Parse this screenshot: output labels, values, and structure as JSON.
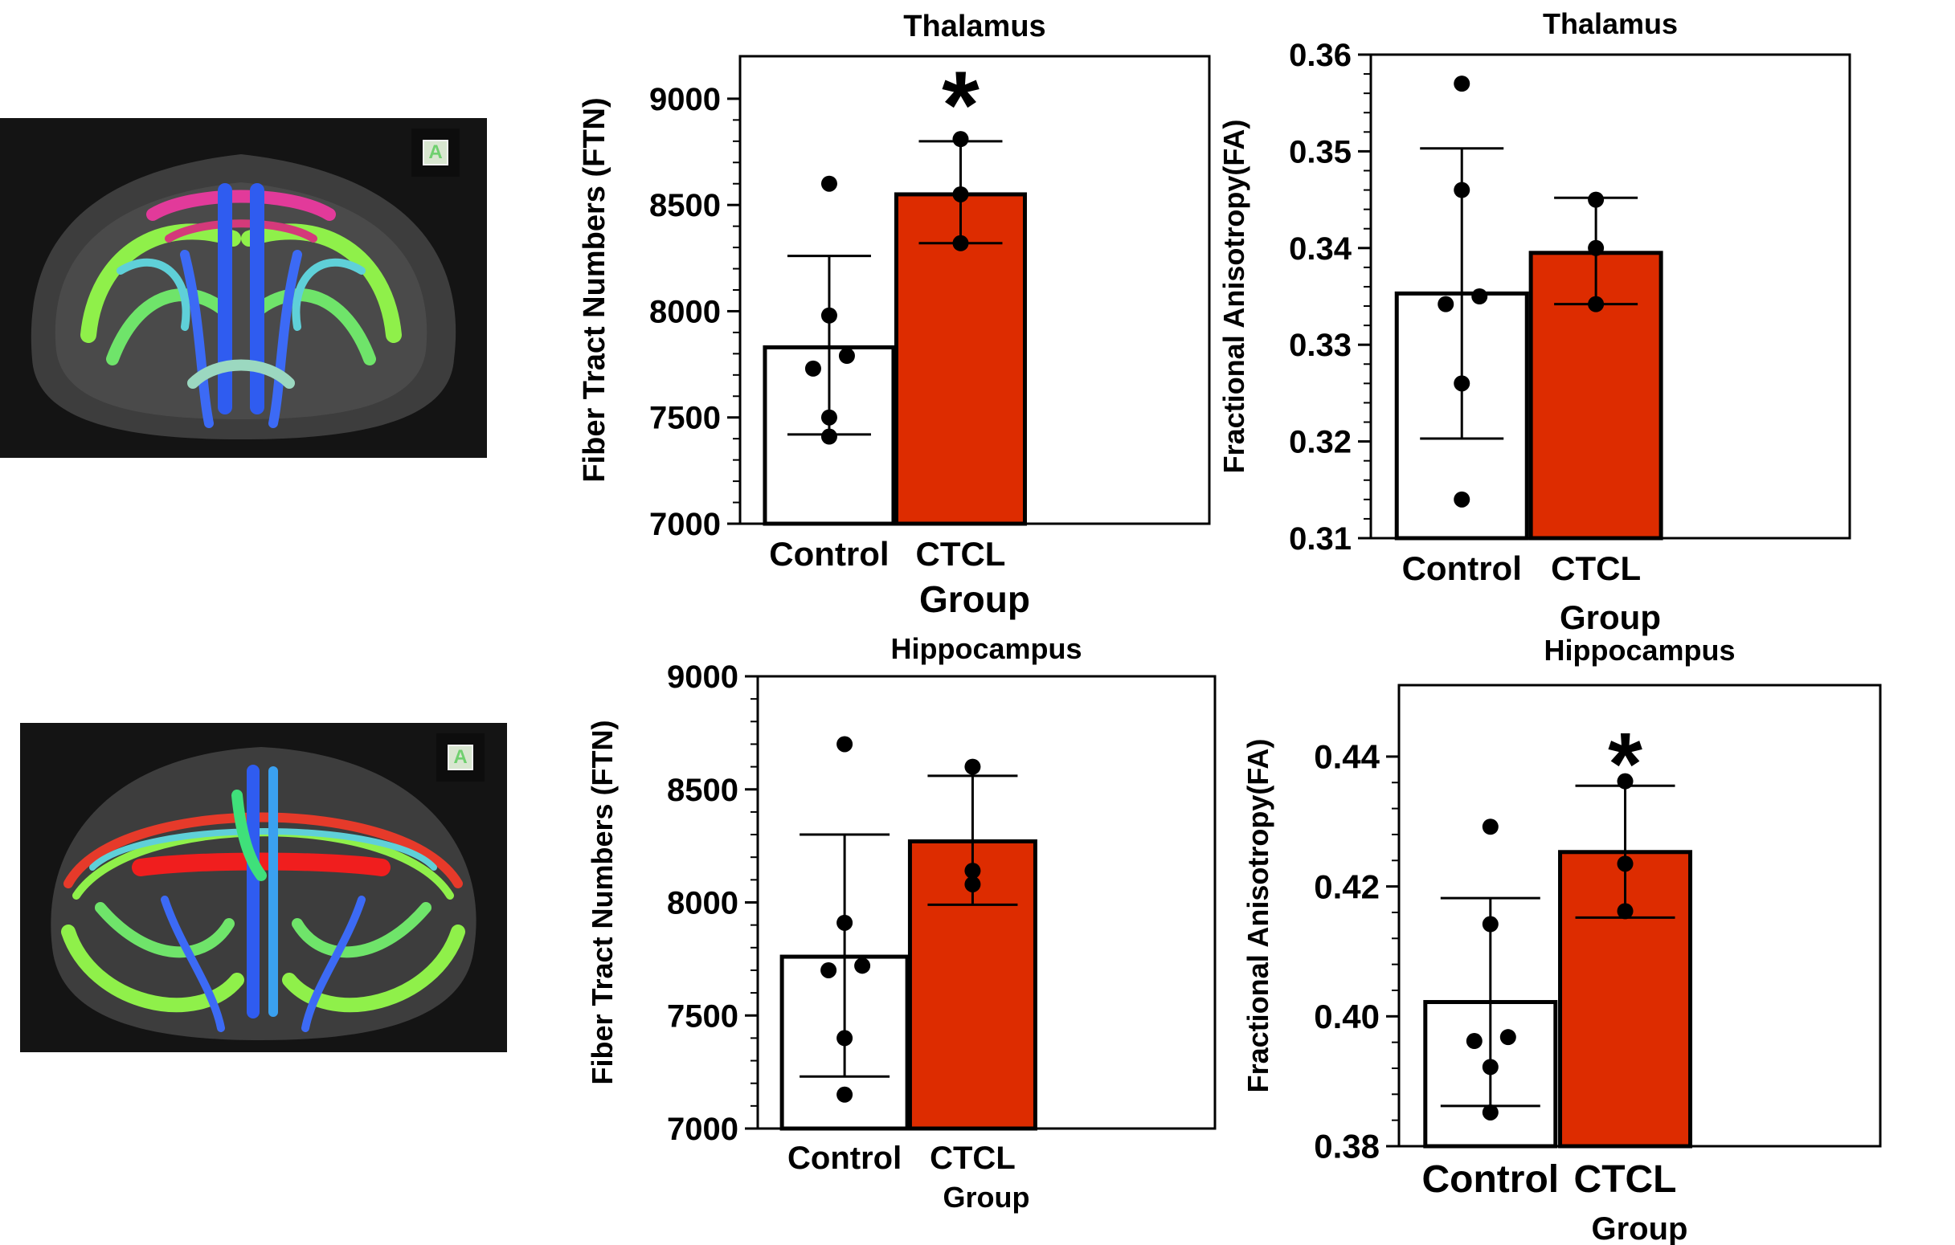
{
  "figure": {
    "orientation_label": "A",
    "panels": [
      {
        "id": "thalamus",
        "image_icon": "brain-tractography-thalamus"
      },
      {
        "id": "hippocampus",
        "image_icon": "brain-tractography-hippocampus"
      }
    ]
  },
  "colors": {
    "control_fill": "#ffffff",
    "ctcl_fill": "#dd2c00",
    "outline": "#000000"
  },
  "chart_data": [
    {
      "type": "bar",
      "title": "Thalamus",
      "xlabel": "Group",
      "ylabel": "Fiber Tract Numbers (FTN)",
      "categories": [
        "Control",
        "CTCL"
      ],
      "values": [
        7830,
        8550
      ],
      "errors": [
        [
          7420,
          8260
        ],
        [
          8320,
          8800
        ]
      ],
      "points": [
        [
          8600,
          7980,
          7730,
          7790,
          7500,
          7410
        ],
        [
          8810,
          8550,
          8320
        ]
      ],
      "ylim": [
        7000,
        9200
      ],
      "yticks": [
        7000,
        7500,
        8000,
        8500,
        9000
      ],
      "ytick_labels": [
        "7000",
        "7500",
        "8000",
        "8500",
        "9000"
      ],
      "significance": [
        "",
        "*"
      ]
    },
    {
      "type": "bar",
      "title": "Thalamus",
      "xlabel": "Group",
      "ylabel": "Fractional Anisotropy(FA)",
      "categories": [
        "Control",
        "CTCL"
      ],
      "values": [
        0.3353,
        0.3395
      ],
      "errors": [
        [
          0.3203,
          0.3503
        ],
        [
          0.3342,
          0.3452
        ]
      ],
      "points": [
        [
          0.357,
          0.346,
          0.3342,
          0.335,
          0.326,
          0.314
        ],
        [
          0.345,
          0.34,
          0.3342
        ]
      ],
      "ylim": [
        0.31,
        0.36
      ],
      "yticks": [
        0.31,
        0.32,
        0.33,
        0.34,
        0.35,
        0.36
      ],
      "ytick_labels": [
        "0.31",
        "0.32",
        "0.33",
        "0.34",
        "0.35",
        "0.36"
      ],
      "significance": [
        "",
        ""
      ]
    },
    {
      "type": "bar",
      "title": "Hippocampus",
      "xlabel": "Group",
      "ylabel": "Fiber  Tract Numbers (FTN)",
      "categories": [
        "Control",
        "CTCL"
      ],
      "values": [
        7760,
        8270
      ],
      "errors": [
        [
          7230,
          8300
        ],
        [
          7990,
          8560
        ]
      ],
      "points": [
        [
          8700,
          7910,
          7700,
          7720,
          7400,
          7150
        ],
        [
          8600,
          8080,
          8140
        ]
      ],
      "ylim": [
        7000,
        9000
      ],
      "yticks": [
        7000,
        7500,
        8000,
        8500,
        9000
      ],
      "ytick_labels": [
        "7000",
        "7500",
        "8000",
        "8500",
        "9000"
      ],
      "significance": [
        "",
        ""
      ]
    },
    {
      "type": "bar",
      "title": "Hippocampus",
      "xlabel": "Group",
      "ylabel": "Fractional Anisotropy(FA)",
      "categories": [
        "Control",
        "CTCL"
      ],
      "values": [
        0.4022,
        0.4253
      ],
      "errors": [
        [
          0.3862,
          0.4182
        ],
        [
          0.4152,
          0.4355
        ]
      ],
      "points": [
        [
          0.4292,
          0.4142,
          0.3962,
          0.3968,
          0.3922,
          0.3852
        ],
        [
          0.4362,
          0.4235,
          0.4162
        ]
      ],
      "ylim": [
        0.38,
        0.451
      ],
      "yticks": [
        0.38,
        0.4,
        0.42,
        0.44
      ],
      "ytick_labels": [
        "0.38",
        "0.40",
        "0.42",
        "0.44"
      ],
      "significance": [
        "",
        "*"
      ]
    }
  ]
}
